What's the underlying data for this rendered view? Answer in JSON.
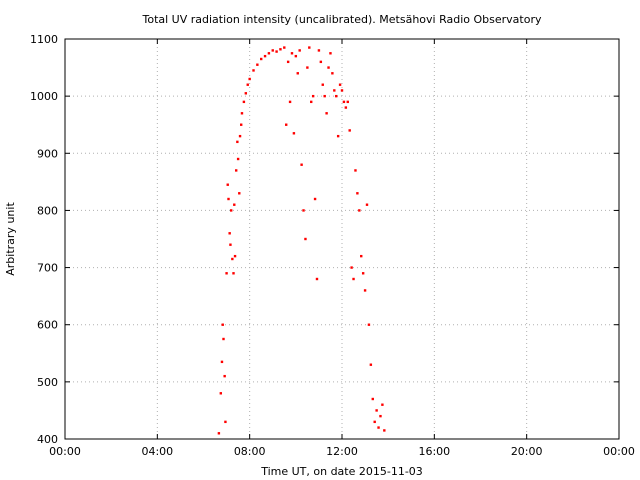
{
  "chart_data": {
    "type": "scatter",
    "title": "Total UV radiation intensity (uncalibrated). Metsähovi Radio Observatory",
    "xlabel": "Time UT, on date 2015-11-03",
    "ylabel": "Arbitrary unit",
    "xlim": [
      "00:00",
      "24:00"
    ],
    "ylim": [
      400,
      1100
    ],
    "x_ticks": [
      "00:00",
      "04:00",
      "08:00",
      "12:00",
      "16:00",
      "20:00",
      "00:00"
    ],
    "y_ticks": [
      "400",
      "500",
      "600",
      "700",
      "800",
      "900",
      "1000",
      "1100"
    ],
    "grid": true,
    "marker_color": "#ff0000",
    "series": [
      {
        "x": [
          "06:40",
          "06:45",
          "06:48",
          "06:50",
          "06:52",
          "06:55",
          "06:57",
          "07:00",
          "07:03",
          "07:05",
          "07:08",
          "07:10",
          "07:12",
          "07:15",
          "07:18",
          "07:20",
          "07:22",
          "07:25",
          "07:28",
          "07:30",
          "07:33",
          "07:35",
          "07:38",
          "07:40",
          "07:45",
          "07:50",
          "07:55",
          "08:00",
          "08:10",
          "08:20",
          "08:30",
          "08:40",
          "08:50",
          "09:00",
          "09:10",
          "09:20",
          "09:30",
          "09:35",
          "09:40",
          "09:45",
          "09:50",
          "09:55",
          "10:00",
          "10:05",
          "10:10",
          "10:15",
          "10:20",
          "10:25",
          "10:30",
          "10:35",
          "10:40",
          "10:45",
          "10:50",
          "10:55",
          "11:00",
          "11:05",
          "11:10",
          "11:15",
          "11:20",
          "11:25",
          "11:30",
          "11:35",
          "11:40",
          "11:45",
          "11:50",
          "11:55",
          "12:00",
          "12:05",
          "12:10",
          "12:15",
          "12:20",
          "12:25",
          "12:30",
          "12:35",
          "12:40",
          "12:45",
          "12:50",
          "12:55",
          "13:00",
          "13:05",
          "13:10",
          "13:15",
          "13:20",
          "13:25",
          "13:30",
          "13:35",
          "13:40",
          "13:45",
          "13:50"
        ],
        "y": [
          410,
          480,
          535,
          600,
          575,
          510,
          430,
          690,
          845,
          820,
          760,
          740,
          800,
          715,
          690,
          810,
          720,
          870,
          920,
          890,
          830,
          930,
          950,
          970,
          990,
          1005,
          1020,
          1030,
          1045,
          1055,
          1065,
          1070,
          1075,
          1080,
          1078,
          1082,
          1085,
          950,
          1060,
          990,
          1075,
          935,
          1070,
          1040,
          1080,
          880,
          800,
          750,
          1050,
          1085,
          990,
          1000,
          820,
          680,
          1080,
          1060,
          1020,
          1000,
          970,
          1050,
          1075,
          1040,
          1010,
          1000,
          930,
          1020,
          1010,
          990,
          980,
          990,
          940,
          700,
          680,
          870,
          830,
          800,
          720,
          690,
          660,
          810,
          600,
          530,
          470,
          430,
          450,
          420,
          440,
          460,
          415
        ]
      }
    ]
  }
}
